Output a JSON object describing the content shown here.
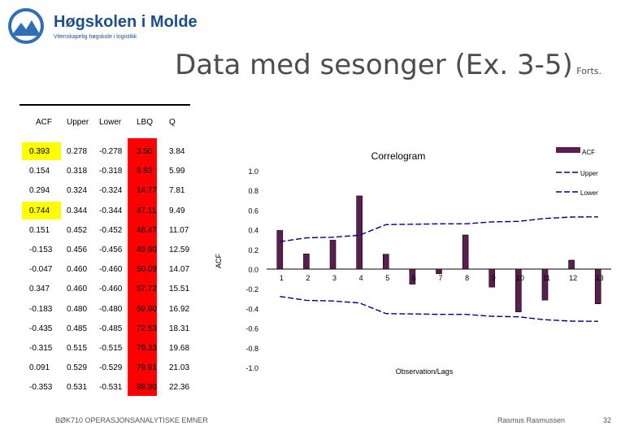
{
  "logo": {
    "name": "Høgskolen i Molde",
    "tagline": "Vitenskapelig høgskole i logistikk"
  },
  "slide": {
    "title_main": "Data med sesonger (Ex. 3-5)",
    "title_cont": "Forts.",
    "footer_left": "BØK710 OPERASJONSANALYTISKE EMNER",
    "footer_author": "Rasmus Rasmussen",
    "page_number": "32"
  },
  "table": {
    "headers": [
      "ACF",
      "Upper",
      "Lower",
      "LBQ",
      "Q"
    ],
    "rows": [
      [
        "0.393",
        "0.278",
        "-0.278",
        "3.50",
        "3.84"
      ],
      [
        "0.154",
        "0.318",
        "-0.318",
        "9.63",
        "5.99"
      ],
      [
        "0.294",
        "0.324",
        "-0.324",
        "14.77",
        "7.81"
      ],
      [
        "0.744",
        "0.344",
        "-0.344",
        "47.11",
        "9.49"
      ],
      [
        "0.151",
        "0.452",
        "-0.452",
        "48.47",
        "11.07"
      ],
      [
        "-0.153",
        "0.456",
        "-0.456",
        "49.90",
        "12.59"
      ],
      [
        "-0.047",
        "0.460",
        "-0.460",
        "50.09",
        "14.07"
      ],
      [
        "0.347",
        "0.460",
        "-0.460",
        "57.72",
        "15.51"
      ],
      [
        "-0.183",
        "0.480",
        "-0.480",
        "59.90",
        "16.92"
      ],
      [
        "-0.435",
        "0.485",
        "-0.485",
        "72.53",
        "18.31"
      ],
      [
        "-0.315",
        "0.515",
        "-0.515",
        "79.33",
        "19.68"
      ],
      [
        "0.091",
        "0.529",
        "-0.529",
        "79.91",
        "21.03"
      ],
      [
        "-0.353",
        "0.531",
        "-0.531",
        "88.90",
        "22.36"
      ]
    ],
    "highlighted_rows": [
      0,
      3
    ],
    "highlight_color": "#ffff00",
    "lbq_highlight_color": "#ff0000"
  },
  "chart_data": {
    "type": "bar",
    "title": "Correlogram",
    "xlabel": "Observation/Lags",
    "ylabel": "ACF",
    "ylim": [
      -1.0,
      1.0
    ],
    "yticks": [
      "1.0",
      "0.8",
      "0.6",
      "0.4",
      "0.2",
      "0.0",
      "-0.2",
      "-0.4",
      "-0.6",
      "-0.8",
      "-1.0"
    ],
    "x": [
      1,
      2,
      3,
      4,
      5,
      6,
      7,
      8,
      9,
      10,
      11,
      12,
      13
    ],
    "xtick_labels": [
      "1",
      "2",
      "3",
      "4",
      "5",
      "6",
      "7",
      "8",
      "9",
      "10",
      "11",
      "12",
      "13"
    ],
    "series": [
      {
        "name": "ACF",
        "type": "bar",
        "color": "#5a1f4e",
        "values": [
          0.393,
          0.154,
          0.294,
          0.744,
          0.151,
          -0.153,
          -0.047,
          0.347,
          -0.183,
          -0.435,
          -0.315,
          0.091,
          -0.353
        ]
      },
      {
        "name": "Upper",
        "type": "line",
        "style": "dash",
        "color": "#000080",
        "values": [
          0.278,
          0.318,
          0.324,
          0.344,
          0.452,
          0.456,
          0.46,
          0.46,
          0.48,
          0.485,
          0.515,
          0.529,
          0.531
        ]
      },
      {
        "name": "Lower",
        "type": "line",
        "style": "dash",
        "color": "#000080",
        "values": [
          -0.278,
          -0.318,
          -0.324,
          -0.344,
          -0.452,
          -0.456,
          -0.46,
          -0.46,
          -0.48,
          -0.485,
          -0.515,
          -0.529,
          -0.531
        ]
      }
    ],
    "legend_position": "top-right",
    "grid": false
  }
}
